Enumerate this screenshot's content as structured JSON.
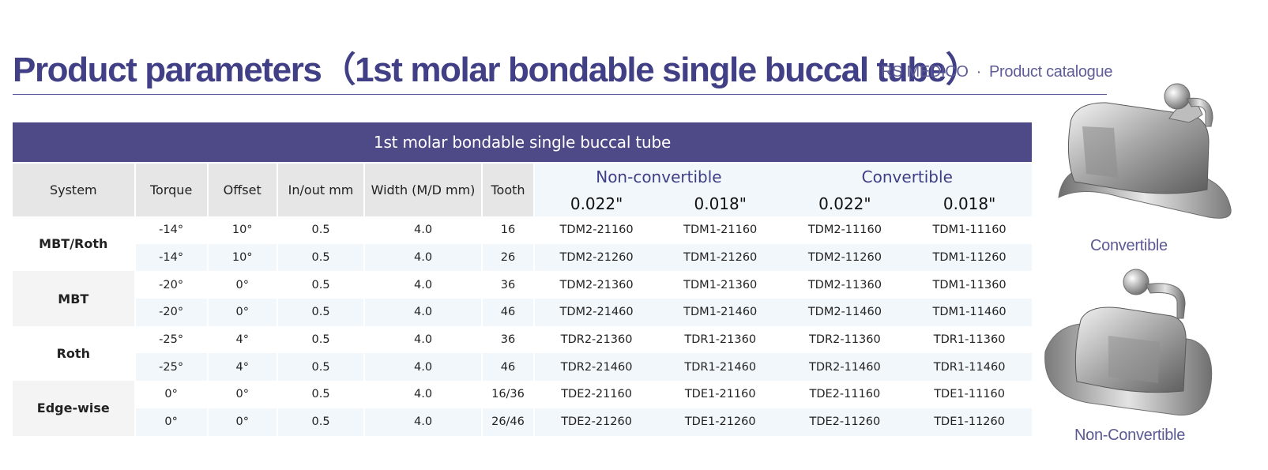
{
  "header": {
    "title": "Product parameters（1st molar bondable single buccal tube）",
    "brand": "RS MEDICO",
    "separator": "·",
    "catalogue": "Product catalogue"
  },
  "table": {
    "banner": "1st molar bondable single  buccal tube",
    "columns": {
      "system": "System",
      "torque": "Torque",
      "offset": "Offset",
      "inout": "In/out mm",
      "width": "Width (M/D mm)",
      "tooth": "Tooth"
    },
    "groups": {
      "nonconvertible": "Non-convertible",
      "convertible": "Convertible"
    },
    "sizes": {
      "nc_022": "0.022\"",
      "nc_018": "0.018\"",
      "c_022": "0.022\"",
      "c_018": "0.018\""
    },
    "systems": [
      "MBT/Roth",
      "MBT",
      "Roth",
      "Edge-wise"
    ],
    "rows": [
      {
        "torque": "-14°",
        "offset": "10°",
        "inout": "0.5",
        "width": "4.0",
        "tooth": "16",
        "nc022": "TDM2-21160",
        "nc018": "TDM1-21160",
        "c022": "TDM2-11160",
        "c018": "TDM1-11160"
      },
      {
        "torque": "-14°",
        "offset": "10°",
        "inout": "0.5",
        "width": "4.0",
        "tooth": "26",
        "nc022": "TDM2-21260",
        "nc018": "TDM1-21260",
        "c022": "TDM2-11260",
        "c018": "TDM1-11260"
      },
      {
        "torque": "-20°",
        "offset": "0°",
        "inout": "0.5",
        "width": "4.0",
        "tooth": "36",
        "nc022": "TDM2-21360",
        "nc018": "TDM1-21360",
        "c022": "TDM2-11360",
        "c018": "TDM1-11360"
      },
      {
        "torque": "-20°",
        "offset": "0°",
        "inout": "0.5",
        "width": "4.0",
        "tooth": "46",
        "nc022": "TDM2-21460",
        "nc018": "TDM1-21460",
        "c022": "TDM2-11460",
        "c018": "TDM1-11460"
      },
      {
        "torque": "-25°",
        "offset": "4°",
        "inout": "0.5",
        "width": "4.0",
        "tooth": "36",
        "nc022": "TDR2-21360",
        "nc018": "TDR1-21360",
        "c022": "TDR2-11360",
        "c018": "TDR1-11360"
      },
      {
        "torque": "-25°",
        "offset": "4°",
        "inout": "0.5",
        "width": "4.0",
        "tooth": "46",
        "nc022": "TDR2-21460",
        "nc018": "TDR1-21460",
        "c022": "TDR2-11460",
        "c018": "TDR1-11460"
      },
      {
        "torque": "0°",
        "offset": "0°",
        "inout": "0.5",
        "width": "4.0",
        "tooth": "16/36",
        "nc022": "TDE2-21160",
        "nc018": "TDE1-21160",
        "c022": "TDE2-11160",
        "c018": "TDE1-11160"
      },
      {
        "torque": "0°",
        "offset": "0°",
        "inout": "0.5",
        "width": "4.0",
        "tooth": "26/46",
        "nc022": "TDE2-21260",
        "nc018": "TDE1-21260",
        "c022": "TDE2-11260",
        "c018": "TDE1-11260"
      }
    ]
  },
  "products": [
    {
      "caption": "Convertible",
      "icon": "convertible-buccal-tube-image"
    },
    {
      "caption": "Non-Convertible",
      "icon": "non-convertible-buccal-tube-image"
    }
  ]
}
